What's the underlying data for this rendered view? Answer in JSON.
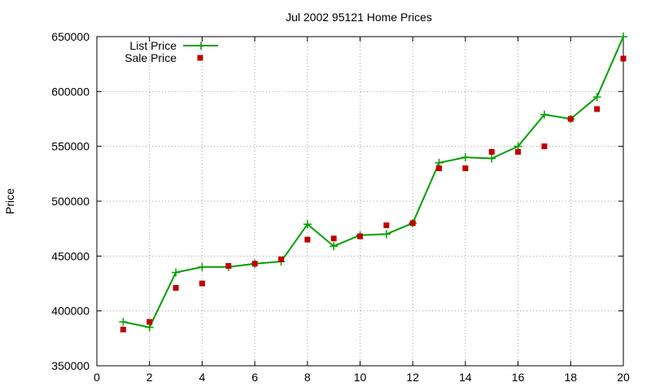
{
  "chart_data": {
    "type": "line",
    "title": "Jul 2002 95121 Home Prices",
    "xlabel": "",
    "ylabel": "Price",
    "xlim": [
      0,
      20
    ],
    "ylim": [
      350000,
      650000
    ],
    "xticks": [
      0,
      2,
      4,
      6,
      8,
      10,
      12,
      14,
      16,
      18,
      20
    ],
    "yticks": [
      350000,
      400000,
      450000,
      500000,
      550000,
      600000,
      650000
    ],
    "grid": true,
    "legend_position": "top-left",
    "series": [
      {
        "name": "List Price",
        "style": "line-with-plus-markers",
        "color": "#00a000",
        "x": [
          1,
          2,
          3,
          4,
          5,
          6,
          7,
          8,
          9,
          10,
          11,
          12,
          13,
          14,
          15,
          16,
          17,
          18,
          19,
          20
        ],
        "values": [
          390000,
          385000,
          435000,
          440000,
          440000,
          443000,
          445000,
          479000,
          459000,
          469000,
          470000,
          480000,
          535000,
          540000,
          539000,
          550000,
          579000,
          575000,
          595000,
          650000
        ]
      },
      {
        "name": "Sale Price",
        "style": "square-markers",
        "color": "#c00000",
        "x": [
          1,
          2,
          3,
          4,
          5,
          6,
          7,
          8,
          9,
          10,
          11,
          12,
          13,
          14,
          15,
          16,
          17,
          18,
          19,
          20
        ],
        "values": [
          383000,
          390000,
          421000,
          425000,
          441000,
          443000,
          447000,
          465000,
          466000,
          468000,
          478000,
          480000,
          530000,
          530000,
          545000,
          545000,
          550000,
          575000,
          584000,
          630000
        ]
      }
    ]
  }
}
